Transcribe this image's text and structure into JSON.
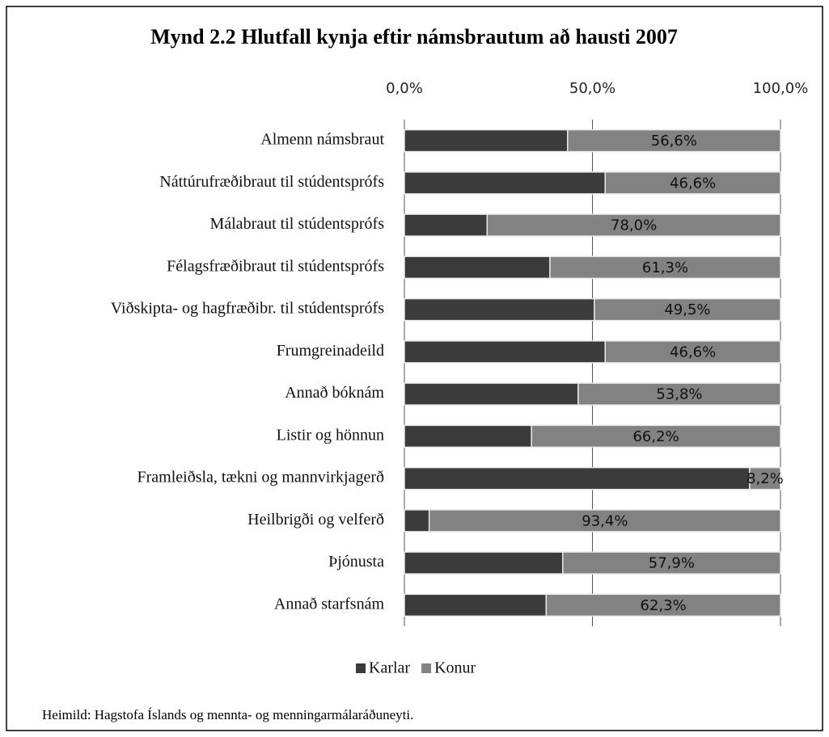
{
  "chart_data": {
    "type": "stacked_bar_horizontal",
    "title": "Mynd 2.2 Hlutfall kynja eftir námsbrautum að hausti 2007",
    "categories": [
      "Almenn námsbraut",
      "Náttúrufræðibraut til stúdentsprófs",
      "Málabraut til stúdentsprófs",
      "Félagsfræðibraut til stúdentsprófs",
      "Viðskipta- og hagfræðibr. til stúdentsprófs",
      "Frumgreinadeild",
      "Annað bóknám",
      "Listir og hönnun",
      "Framleiðsla, tækni og mannvirkjagerð",
      "Heilbrigði og velferð",
      "Þjónusta",
      "Annað starfsnám"
    ],
    "series": [
      {
        "name": "Karlar",
        "color": "#3b3b3b",
        "values": [
          43.4,
          53.4,
          22.0,
          38.7,
          50.5,
          53.4,
          46.2,
          33.8,
          91.8,
          6.6,
          42.1,
          37.7
        ]
      },
      {
        "name": "Konur",
        "color": "#828282",
        "values": [
          56.6,
          46.6,
          78.0,
          61.3,
          49.5,
          46.6,
          53.8,
          66.2,
          8.2,
          93.4,
          57.9,
          62.3
        ],
        "value_labels": [
          "56,6%",
          "46,6%",
          "78,0%",
          "61,3%",
          "49,5%",
          "46,6%",
          "53,8%",
          "66,2%",
          "8,2%",
          "93,4%",
          "57,9%",
          "62,3%"
        ]
      }
    ],
    "xlim": [
      0,
      100
    ],
    "xticks": [
      {
        "value": 0,
        "label": "0,0%"
      },
      {
        "value": 50,
        "label": "50,0%"
      },
      {
        "value": 100,
        "label": "100,0%"
      }
    ],
    "grid": true,
    "legend": "bottom",
    "source": "Heimild: Hagstofa Íslands og mennta- og menningarmálaráðuneyti."
  }
}
